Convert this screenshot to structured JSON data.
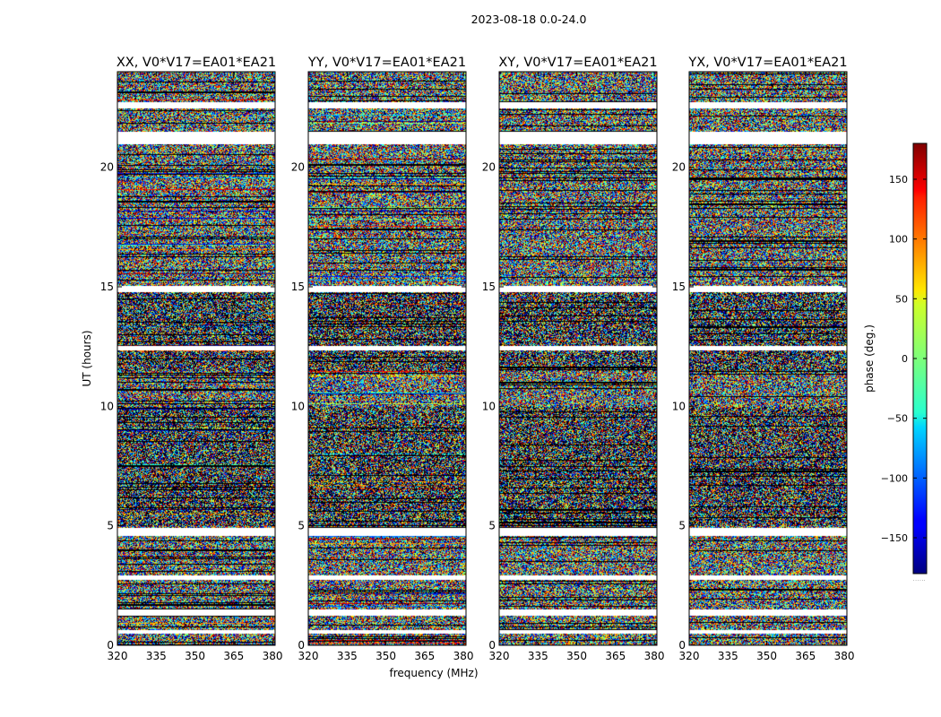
{
  "figure": {
    "suptitle": "2023-08-18 0.0-24.0"
  },
  "chart_data": {
    "type": "heatmap",
    "xlabel": "frequency (MHz)",
    "ylabel": "UT (hours)",
    "xlim": [
      320,
      381
    ],
    "ylim": [
      0,
      24
    ],
    "xticks": [
      320,
      335,
      350,
      365,
      380
    ],
    "yticks": [
      0,
      5,
      10,
      15,
      20
    ],
    "panels": [
      {
        "title": "XX, V0*V17=EA01*EA21",
        "pol": "XX"
      },
      {
        "title": "YY, V0*V17=EA01*EA21",
        "pol": "YY"
      },
      {
        "title": "XY, V0*V17=EA01*EA21",
        "pol": "XY"
      },
      {
        "title": "YX, V0*V17=EA01*EA21",
        "pol": "YX"
      }
    ],
    "flagged_time_ranges_hours": [
      [
        0.5,
        0.65
      ],
      [
        1.25,
        1.5
      ],
      [
        2.75,
        2.95
      ],
      [
        4.6,
        4.95
      ],
      [
        12.35,
        12.55
      ],
      [
        14.8,
        15.05
      ],
      [
        21.0,
        21.5
      ],
      [
        22.5,
        22.75
      ]
    ],
    "colorbar": {
      "label": "phase (deg.)",
      "range": [
        -180,
        180
      ],
      "ticks": [
        -150,
        -100,
        -50,
        0,
        50,
        100,
        150
      ],
      "colormap": "jet",
      "extra_mark": "......"
    }
  }
}
